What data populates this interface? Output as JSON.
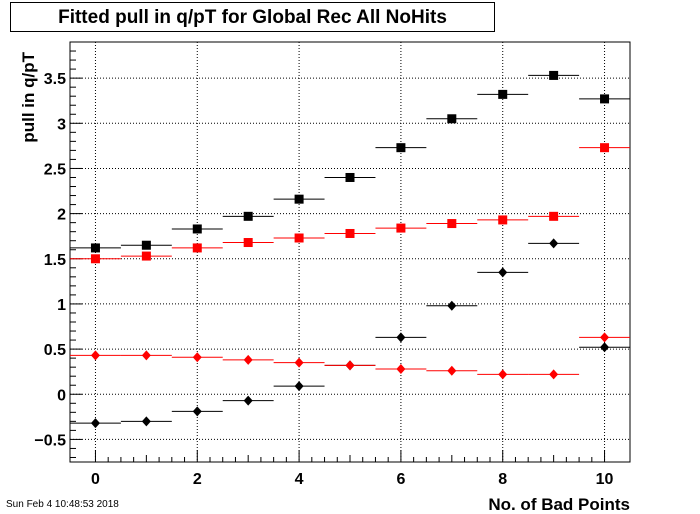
{
  "title": "Fitted pull in q/pT for Global Rec All NoHits",
  "timestamp": "Sun Feb  4 10:48:53 2018",
  "chart_data": {
    "type": "scatter",
    "xlabel": "No. of Bad Points",
    "ylabel": "pull in q/pT",
    "xlim": [
      -0.5,
      10.5
    ],
    "ylim": [
      -0.75,
      3.9
    ],
    "x_ticks": [
      0,
      2,
      4,
      6,
      8,
      10
    ],
    "y_ticks": [
      -0.5,
      0,
      0.5,
      1,
      1.5,
      2,
      2.5,
      3,
      3.5
    ],
    "y_tick_labels": [
      "−0.5",
      "0",
      "0.5",
      "1",
      "1.5",
      "2",
      "2.5",
      "3",
      "3.5"
    ],
    "grid": true,
    "x_error": 0.5,
    "series": [
      {
        "color": "#000000",
        "marker": "square",
        "x": [
          0,
          1,
          2,
          3,
          4,
          5,
          6,
          7,
          8,
          9,
          10
        ],
        "y": [
          1.62,
          1.65,
          1.83,
          1.97,
          2.16,
          2.4,
          2.73,
          3.05,
          3.32,
          3.53,
          3.27
        ]
      },
      {
        "color": "#ff0000",
        "marker": "square",
        "x": [
          0,
          1,
          2,
          3,
          4,
          5,
          6,
          7,
          8,
          9,
          10
        ],
        "y": [
          1.5,
          1.53,
          1.62,
          1.68,
          1.73,
          1.78,
          1.84,
          1.89,
          1.93,
          1.97,
          2.73
        ]
      },
      {
        "color": "#000000",
        "marker": "diamond",
        "x": [
          0,
          1,
          2,
          3,
          4,
          5,
          6,
          7,
          8,
          9,
          10
        ],
        "y": [
          -0.32,
          -0.3,
          -0.19,
          -0.07,
          0.09,
          0.32,
          0.63,
          0.98,
          1.35,
          1.67,
          0.52
        ]
      },
      {
        "color": "#ff0000",
        "marker": "diamond",
        "x": [
          0,
          1,
          2,
          3,
          4,
          5,
          6,
          7,
          8,
          9,
          10
        ],
        "y": [
          0.43,
          0.43,
          0.41,
          0.38,
          0.35,
          0.32,
          0.28,
          0.26,
          0.22,
          0.22,
          0.63
        ]
      }
    ]
  }
}
